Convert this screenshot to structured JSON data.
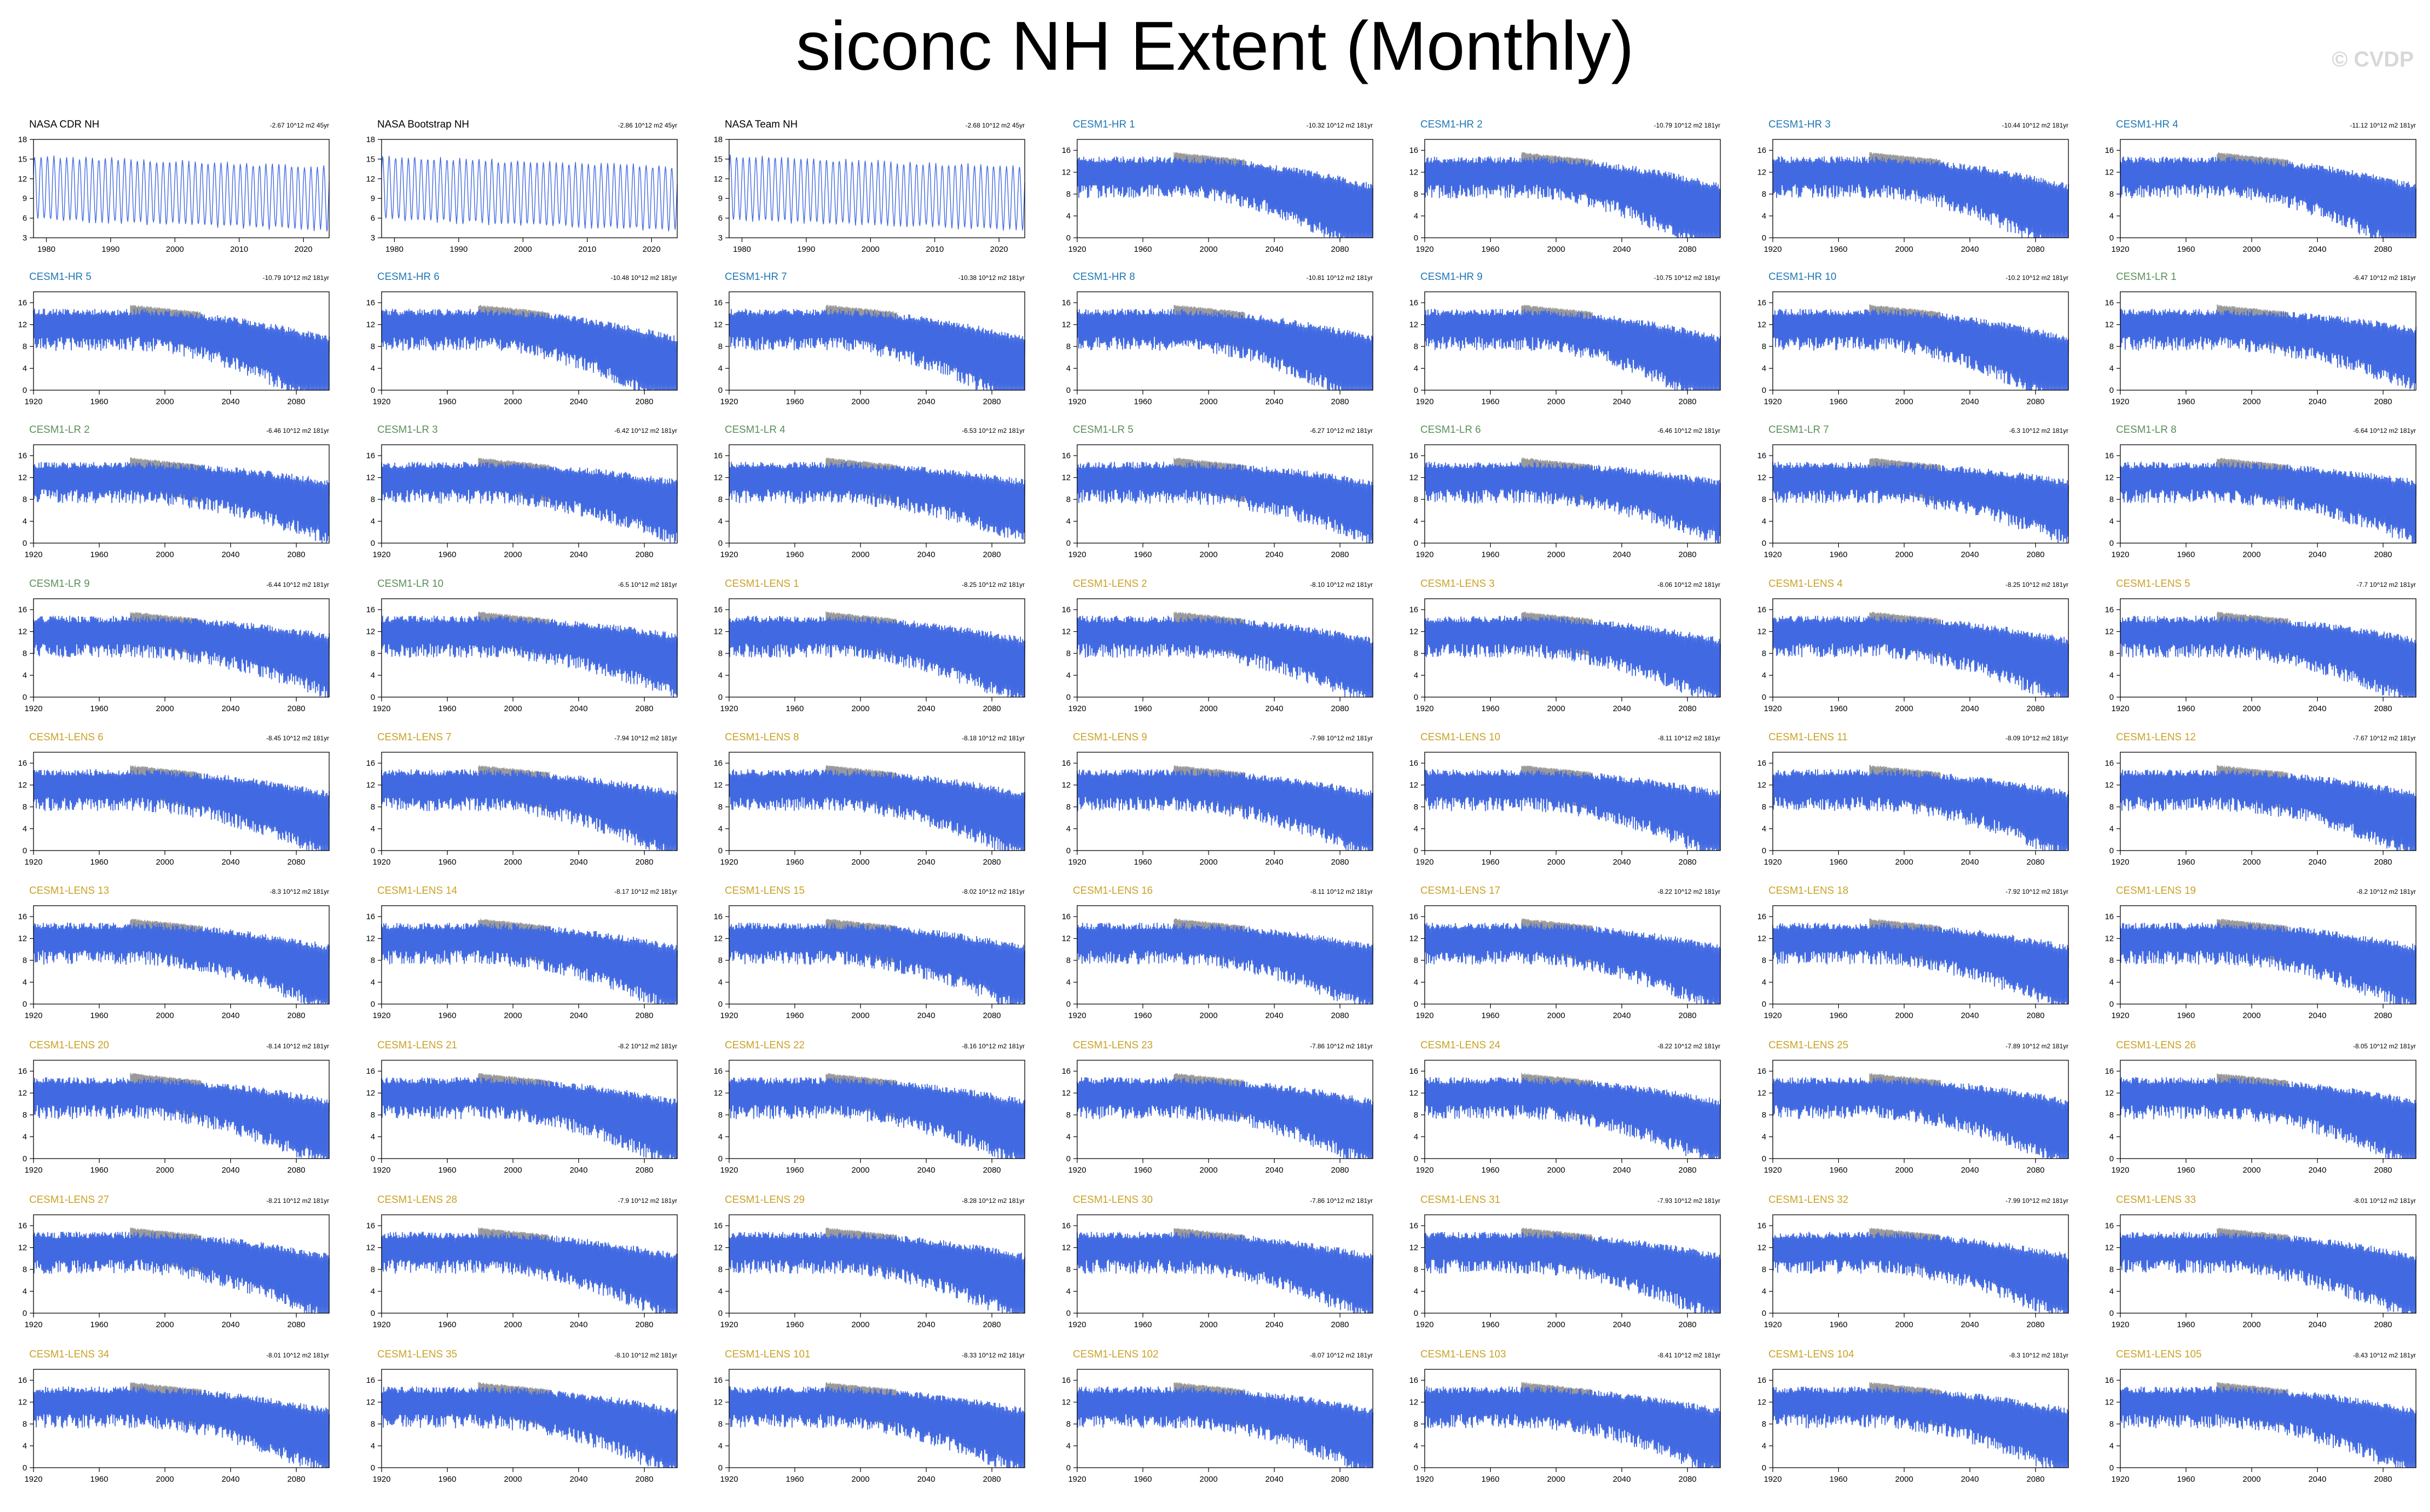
{
  "title": "siconc NH Extent (Monthly)",
  "watermark": "© CVDP",
  "colors": {
    "model_line": "#4169e1",
    "observed_overlay": "#9a9a9a",
    "obs_title": "#000000",
    "hr_title": "#1f77b4",
    "lr_title": "#5a8f5a",
    "lens_title": "#c9a227"
  },
  "chart_data": {
    "type": "line",
    "panels": [
      {
        "label": "NASA CDR NH",
        "group": "obs",
        "trend": "-2.67 10^12 m2 45yr",
        "x_ticks": [
          1980,
          1990,
          2000,
          2010,
          2020
        ],
        "xlim": [
          1978,
          2024
        ],
        "y_ticks": [
          3,
          6,
          9,
          12,
          15,
          18
        ],
        "ylim": [
          3,
          18
        ]
      },
      {
        "label": "NASA Bootstrap NH",
        "group": "obs",
        "trend": "-2.86 10^12 m2 45yr",
        "x_ticks": [
          1980,
          1990,
          2000,
          2010,
          2020
        ],
        "xlim": [
          1978,
          2024
        ],
        "y_ticks": [
          3,
          6,
          9,
          12,
          15,
          18
        ],
        "ylim": [
          3,
          18
        ]
      },
      {
        "label": "NASA Team NH",
        "group": "obs",
        "trend": "-2.68 10^12 m2 45yr",
        "x_ticks": [
          1980,
          1990,
          2000,
          2010,
          2020
        ],
        "xlim": [
          1978,
          2024
        ],
        "y_ticks": [
          3,
          6,
          9,
          12,
          15,
          18
        ],
        "ylim": [
          3,
          18
        ]
      },
      {
        "label": "CESM1-HR 1",
        "group": "hr",
        "trend": "-10.32 10^12 m2 181yr"
      },
      {
        "label": "CESM1-HR 2",
        "group": "hr",
        "trend": "-10.79 10^12 m2 181yr"
      },
      {
        "label": "CESM1-HR 3",
        "group": "hr",
        "trend": "-10.44 10^12 m2 181yr"
      },
      {
        "label": "CESM1-HR 4",
        "group": "hr",
        "trend": "-11.12 10^12 m2 181yr"
      },
      {
        "label": "CESM1-HR 5",
        "group": "hr",
        "trend": "-10.79 10^12 m2 181yr"
      },
      {
        "label": "CESM1-HR 6",
        "group": "hr",
        "trend": "-10.48 10^12 m2 181yr"
      },
      {
        "label": "CESM1-HR 7",
        "group": "hr",
        "trend": "-10.38 10^12 m2 181yr"
      },
      {
        "label": "CESM1-HR 8",
        "group": "hr",
        "trend": "-10.81 10^12 m2 181yr"
      },
      {
        "label": "CESM1-HR 9",
        "group": "hr",
        "trend": "-10.75 10^12 m2 181yr"
      },
      {
        "label": "CESM1-HR 10",
        "group": "hr",
        "trend": "-10.2 10^12 m2 181yr"
      },
      {
        "label": "CESM1-LR 1",
        "group": "lr",
        "trend": "-6.47 10^12 m2 181yr"
      },
      {
        "label": "CESM1-LR 2",
        "group": "lr",
        "trend": "-6.46 10^12 m2 181yr"
      },
      {
        "label": "CESM1-LR 3",
        "group": "lr",
        "trend": "-6.42 10^12 m2 181yr"
      },
      {
        "label": "CESM1-LR 4",
        "group": "lr",
        "trend": "-6.53 10^12 m2 181yr"
      },
      {
        "label": "CESM1-LR 5",
        "group": "lr",
        "trend": "-6.27 10^12 m2 181yr"
      },
      {
        "label": "CESM1-LR 6",
        "group": "lr",
        "trend": "-6.46 10^12 m2 181yr"
      },
      {
        "label": "CESM1-LR 7",
        "group": "lr",
        "trend": "-6.3 10^12 m2 181yr"
      },
      {
        "label": "CESM1-LR 8",
        "group": "lr",
        "trend": "-6.64 10^12 m2 181yr"
      },
      {
        "label": "CESM1-LR 9",
        "group": "lr",
        "trend": "-6.44 10^12 m2 181yr"
      },
      {
        "label": "CESM1-LR 10",
        "group": "lr",
        "trend": "-6.5 10^12 m2 181yr"
      },
      {
        "label": "CESM1-LENS 1",
        "group": "lens",
        "trend": "-8.25 10^12 m2 181yr"
      },
      {
        "label": "CESM1-LENS 2",
        "group": "lens",
        "trend": "-8.10 10^12 m2 181yr"
      },
      {
        "label": "CESM1-LENS 3",
        "group": "lens",
        "trend": "-8.06 10^12 m2 181yr"
      },
      {
        "label": "CESM1-LENS 4",
        "group": "lens",
        "trend": "-8.25 10^12 m2 181yr"
      },
      {
        "label": "CESM1-LENS 5",
        "group": "lens",
        "trend": "-7.7 10^12 m2 181yr"
      },
      {
        "label": "CESM1-LENS 6",
        "group": "lens",
        "trend": "-8.45 10^12 m2 181yr"
      },
      {
        "label": "CESM1-LENS 7",
        "group": "lens",
        "trend": "-7.94 10^12 m2 181yr"
      },
      {
        "label": "CESM1-LENS 8",
        "group": "lens",
        "trend": "-8.18 10^12 m2 181yr"
      },
      {
        "label": "CESM1-LENS 9",
        "group": "lens",
        "trend": "-7.98 10^12 m2 181yr"
      },
      {
        "label": "CESM1-LENS 10",
        "group": "lens",
        "trend": "-8.11 10^12 m2 181yr"
      },
      {
        "label": "CESM1-LENS 11",
        "group": "lens",
        "trend": "-8.09 10^12 m2 181yr"
      },
      {
        "label": "CESM1-LENS 12",
        "group": "lens",
        "trend": "-7.67 10^12 m2 181yr"
      },
      {
        "label": "CESM1-LENS 13",
        "group": "lens",
        "trend": "-8.3 10^12 m2 181yr"
      },
      {
        "label": "CESM1-LENS 14",
        "group": "lens",
        "trend": "-8.17 10^12 m2 181yr"
      },
      {
        "label": "CESM1-LENS 15",
        "group": "lens",
        "trend": "-8.02 10^12 m2 181yr"
      },
      {
        "label": "CESM1-LENS 16",
        "group": "lens",
        "trend": "-8.11 10^12 m2 181yr"
      },
      {
        "label": "CESM1-LENS 17",
        "group": "lens",
        "trend": "-8.22 10^12 m2 181yr"
      },
      {
        "label": "CESM1-LENS 18",
        "group": "lens",
        "trend": "-7.92 10^12 m2 181yr"
      },
      {
        "label": "CESM1-LENS 19",
        "group": "lens",
        "trend": "-8.2 10^12 m2 181yr"
      },
      {
        "label": "CESM1-LENS 20",
        "group": "lens",
        "trend": "-8.14 10^12 m2 181yr"
      },
      {
        "label": "CESM1-LENS 21",
        "group": "lens",
        "trend": "-8.2 10^12 m2 181yr"
      },
      {
        "label": "CESM1-LENS 22",
        "group": "lens",
        "trend": "-8.16 10^12 m2 181yr"
      },
      {
        "label": "CESM1-LENS 23",
        "group": "lens",
        "trend": "-7.86 10^12 m2 181yr"
      },
      {
        "label": "CESM1-LENS 24",
        "group": "lens",
        "trend": "-8.22 10^12 m2 181yr"
      },
      {
        "label": "CESM1-LENS 25",
        "group": "lens",
        "trend": "-7.89 10^12 m2 181yr"
      },
      {
        "label": "CESM1-LENS 26",
        "group": "lens",
        "trend": "-8.05 10^12 m2 181yr"
      },
      {
        "label": "CESM1-LENS 27",
        "group": "lens",
        "trend": "-8.21 10^12 m2 181yr"
      },
      {
        "label": "CESM1-LENS 28",
        "group": "lens",
        "trend": "-7.9 10^12 m2 181yr"
      },
      {
        "label": "CESM1-LENS 29",
        "group": "lens",
        "trend": "-8.28 10^12 m2 181yr"
      },
      {
        "label": "CESM1-LENS 30",
        "group": "lens",
        "trend": "-7.86 10^12 m2 181yr"
      },
      {
        "label": "CESM1-LENS 31",
        "group": "lens",
        "trend": "-7.93 10^12 m2 181yr"
      },
      {
        "label": "CESM1-LENS 32",
        "group": "lens",
        "trend": "-7.99 10^12 m2 181yr"
      },
      {
        "label": "CESM1-LENS 33",
        "group": "lens",
        "trend": "-8.01 10^12 m2 181yr"
      },
      {
        "label": "CESM1-LENS 34",
        "group": "lens",
        "trend": "-8.01 10^12 m2 181yr"
      },
      {
        "label": "CESM1-LENS 35",
        "group": "lens",
        "trend": "-8.10 10^12 m2 181yr"
      },
      {
        "label": "CESM1-LENS 101",
        "group": "lens",
        "trend": "-8.33 10^12 m2 181yr"
      },
      {
        "label": "CESM1-LENS 102",
        "group": "lens",
        "trend": "-8.07 10^12 m2 181yr"
      },
      {
        "label": "CESM1-LENS 103",
        "group": "lens",
        "trend": "-8.41 10^12 m2 181yr"
      },
      {
        "label": "CESM1-LENS 104",
        "group": "lens",
        "trend": "-8.3 10^12 m2 181yr"
      },
      {
        "label": "CESM1-LENS 105",
        "group": "lens",
        "trend": "-8.43 10^12 m2 181yr"
      }
    ],
    "model_defaults": {
      "x_ticks": [
        1920,
        1960,
        2000,
        2040,
        2080
      ],
      "xlim": [
        1920,
        2100
      ],
      "y_ticks": [
        0,
        4,
        8,
        12,
        16
      ],
      "ylim": [
        0,
        18
      ]
    },
    "observed_overlay_years": [
      1979,
      2022
    ]
  }
}
